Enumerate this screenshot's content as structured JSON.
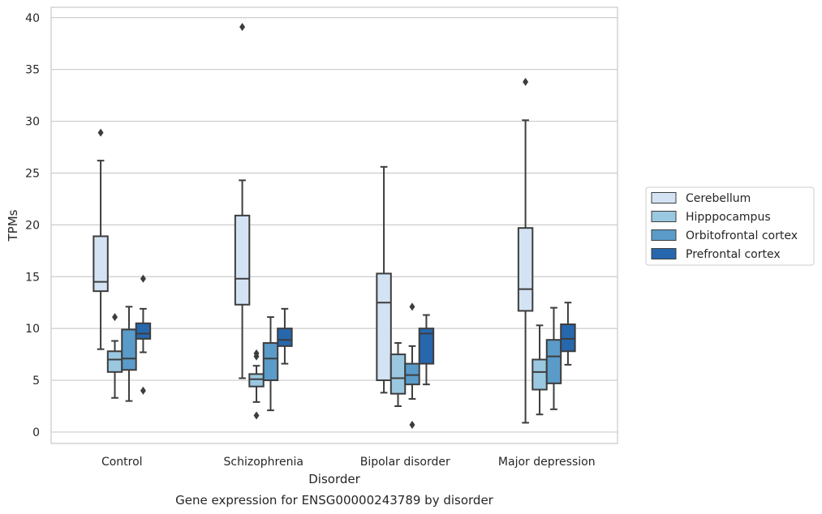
{
  "chart_data": {
    "type": "boxplot",
    "caption": "Gene expression for ENSG00000243789 by disorder",
    "xlabel": "Disorder",
    "ylabel": "TPMs",
    "ylim": [
      -1.1,
      41
    ],
    "yticks": [
      0,
      5,
      10,
      15,
      20,
      25,
      30,
      35,
      40
    ],
    "grid": "horizontal",
    "legend_position": "right",
    "categories": [
      "Control",
      "Schizophrenia",
      "Bipolar disorder",
      "Major depression"
    ],
    "series": [
      {
        "name": "Cerebellum",
        "color": "#d3e3f3",
        "boxes": [
          {
            "whislo": 8.0,
            "q1": 13.6,
            "med": 14.5,
            "q3": 18.9,
            "whishi": 26.2,
            "fliers": [
              28.9
            ]
          },
          {
            "whislo": 5.2,
            "q1": 12.3,
            "med": 14.8,
            "q3": 20.9,
            "whishi": 24.3,
            "fliers": [
              39.1
            ]
          },
          {
            "whislo": 3.8,
            "q1": 5.0,
            "med": 12.5,
            "q3": 15.3,
            "whishi": 25.6,
            "fliers": []
          },
          {
            "whislo": 0.9,
            "q1": 11.7,
            "med": 13.8,
            "q3": 19.7,
            "whishi": 30.1,
            "fliers": [
              33.8
            ]
          }
        ]
      },
      {
        "name": "Hipppocampus",
        "color": "#9ac8e0",
        "boxes": [
          {
            "whislo": 3.3,
            "q1": 5.8,
            "med": 7.0,
            "q3": 7.8,
            "whishi": 8.8,
            "fliers": [
              11.1
            ]
          },
          {
            "whislo": 2.9,
            "q1": 4.4,
            "med": 5.1,
            "q3": 5.6,
            "whishi": 6.4,
            "fliers": [
              7.3,
              7.6,
              1.6
            ]
          },
          {
            "whislo": 2.5,
            "q1": 3.7,
            "med": 5.2,
            "q3": 7.5,
            "whishi": 8.6,
            "fliers": []
          },
          {
            "whislo": 1.7,
            "q1": 4.1,
            "med": 5.8,
            "q3": 7.0,
            "whishi": 10.3,
            "fliers": []
          }
        ]
      },
      {
        "name": "Orbitofrontal cortex",
        "color": "#5a9bc9",
        "boxes": [
          {
            "whislo": 3.0,
            "q1": 6.0,
            "med": 7.1,
            "q3": 9.9,
            "whishi": 12.1,
            "fliers": []
          },
          {
            "whislo": 2.1,
            "q1": 5.0,
            "med": 7.1,
            "q3": 8.6,
            "whishi": 11.1,
            "fliers": []
          },
          {
            "whislo": 3.2,
            "q1": 4.6,
            "med": 5.5,
            "q3": 6.6,
            "whishi": 8.3,
            "fliers": [
              12.1,
              0.7
            ]
          },
          {
            "whislo": 2.2,
            "q1": 4.7,
            "med": 7.3,
            "q3": 8.9,
            "whishi": 12.0,
            "fliers": []
          }
        ]
      },
      {
        "name": "Prefrontal cortex",
        "color": "#2767ad",
        "boxes": [
          {
            "whislo": 7.7,
            "q1": 9.0,
            "med": 9.5,
            "q3": 10.5,
            "whishi": 11.9,
            "fliers": [
              14.8,
              4.0
            ]
          },
          {
            "whislo": 6.6,
            "q1": 8.3,
            "med": 8.9,
            "q3": 10.0,
            "whishi": 11.9,
            "fliers": []
          },
          {
            "whislo": 4.6,
            "q1": 6.6,
            "med": 9.5,
            "q3": 10.0,
            "whishi": 11.3,
            "fliers": []
          },
          {
            "whislo": 6.5,
            "q1": 7.8,
            "med": 9.0,
            "q3": 10.4,
            "whishi": 12.5,
            "fliers": []
          }
        ]
      }
    ]
  }
}
